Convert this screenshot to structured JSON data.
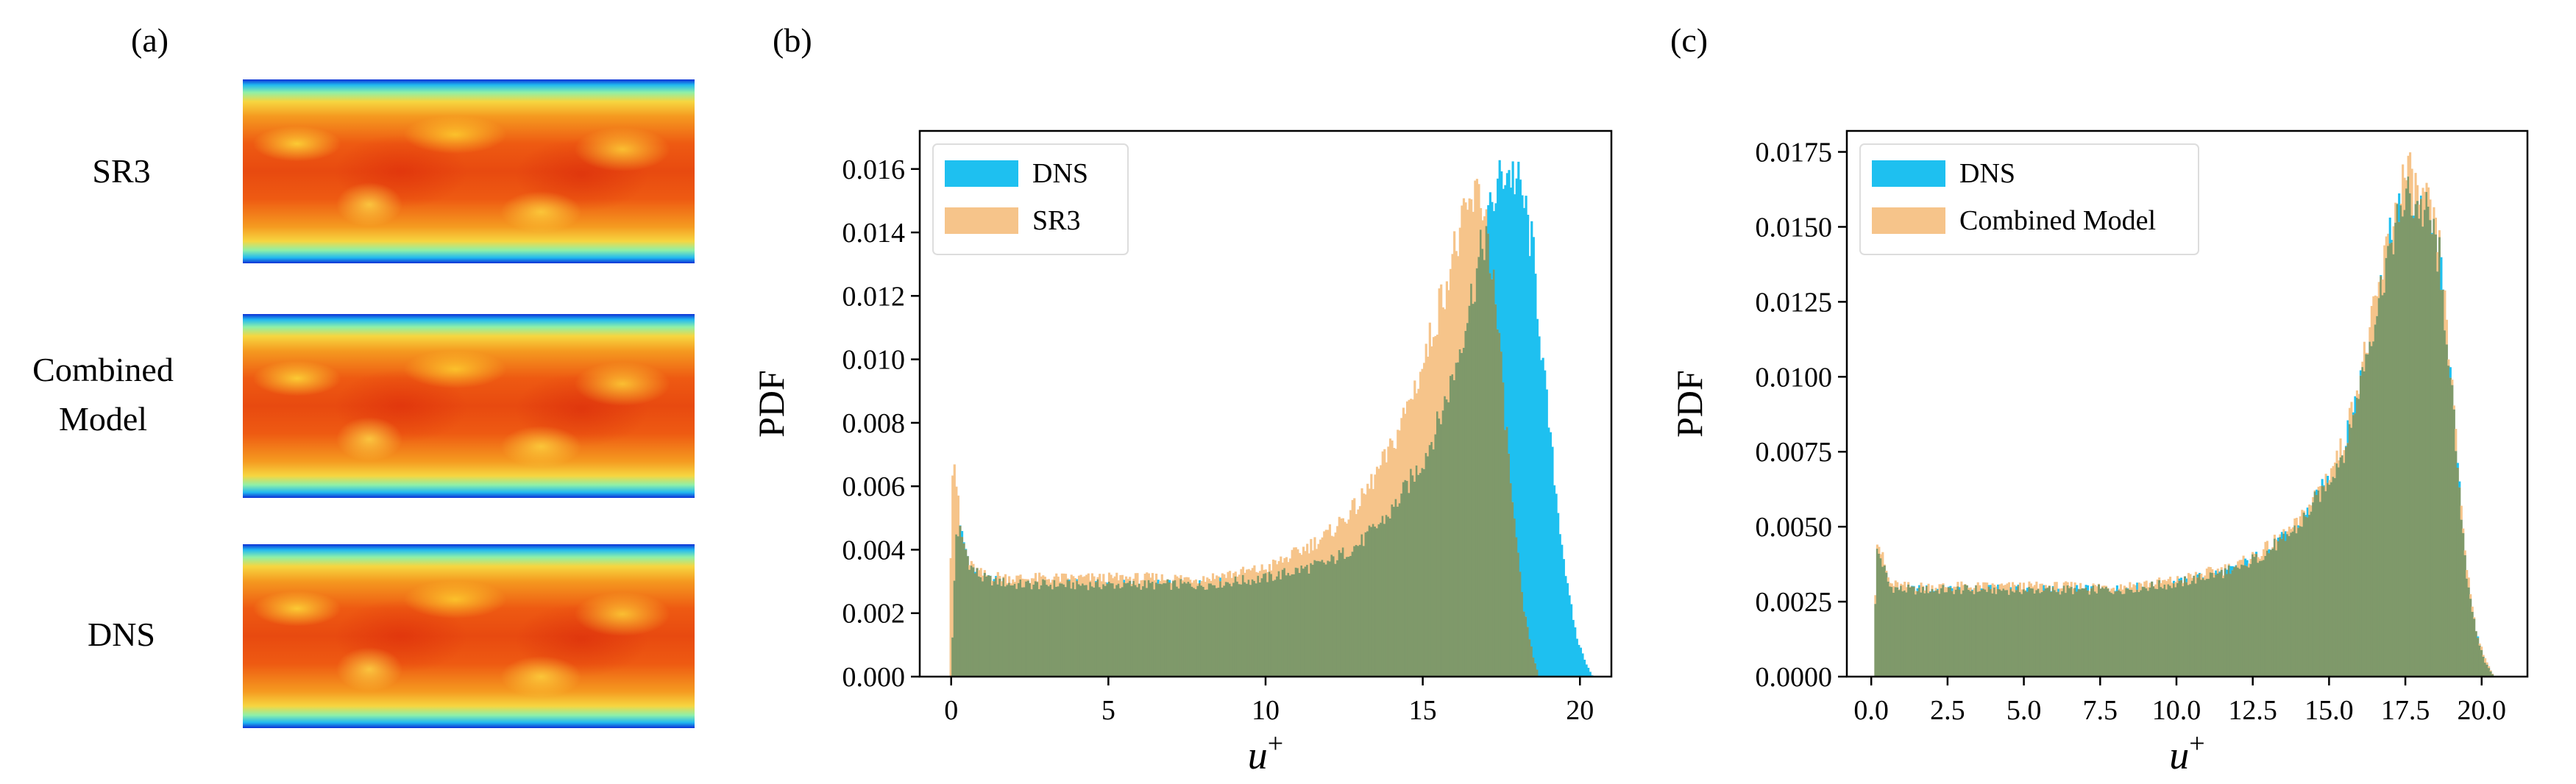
{
  "figure": {
    "panel_a": {
      "label": "(a)",
      "rows": [
        {
          "lines": [
            "SR3"
          ]
        },
        {
          "lines": [
            "Combined",
            "Model"
          ]
        },
        {
          "lines": [
            "DNS"
          ]
        }
      ]
    },
    "panel_b": {
      "label": "(b)"
    },
    "panel_c": {
      "label": "(c)"
    }
  },
  "colors": {
    "dns": "#1ec0f0",
    "model": "#f6c48a",
    "overlap": "#7f996a"
  },
  "chart_data": [
    {
      "type": "histogram",
      "panel": "b",
      "xlabel_base": "u",
      "xlabel_sup": "+",
      "ylabel": "PDF",
      "xlim": [
        -1,
        21
      ],
      "ylim": [
        0,
        0.0172
      ],
      "xticks": [
        0,
        5,
        10,
        15,
        20
      ],
      "xtick_labels": [
        "0",
        "5",
        "10",
        "15",
        "20"
      ],
      "yticks": [
        0,
        0.002,
        0.004,
        0.006,
        0.008,
        0.01,
        0.012,
        0.014,
        0.016
      ],
      "ytick_labels": [
        "0.000",
        "0.002",
        "0.004",
        "0.006",
        "0.008",
        "0.010",
        "0.012",
        "0.014",
        "0.016"
      ],
      "legend": "top-left",
      "series": [
        {
          "name": "DNS",
          "color": "#1ec0f0",
          "points": [
            [
              0.0,
              0.0
            ],
            [
              0.15,
              0.0045
            ],
            [
              0.3,
              0.0046
            ],
            [
              0.6,
              0.0035
            ],
            [
              1,
              0.0031
            ],
            [
              2,
              0.0029
            ],
            [
              4,
              0.0029
            ],
            [
              6,
              0.0029
            ],
            [
              8,
              0.0029
            ],
            [
              10,
              0.0031
            ],
            [
              12,
              0.0036
            ],
            [
              13,
              0.0042
            ],
            [
              14,
              0.0052
            ],
            [
              15,
              0.0068
            ],
            [
              15.5,
              0.008
            ],
            [
              16,
              0.0096
            ],
            [
              16.5,
              0.0118
            ],
            [
              17,
              0.014
            ],
            [
              17.3,
              0.0152
            ],
            [
              17.6,
              0.016
            ],
            [
              17.9,
              0.0158
            ],
            [
              18.2,
              0.015
            ],
            [
              18.5,
              0.0134
            ],
            [
              18.8,
              0.01
            ],
            [
              19,
              0.008
            ],
            [
              19.3,
              0.0052
            ],
            [
              19.6,
              0.0028
            ],
            [
              19.9,
              0.0012
            ],
            [
              20.2,
              0.0004
            ],
            [
              20.4,
              0.0
            ]
          ]
        },
        {
          "name": "SR3",
          "color": "#f6c48a",
          "points": [
            [
              -0.05,
              0.0
            ],
            [
              0.0,
              0.0066
            ],
            [
              0.1,
              0.0068
            ],
            [
              0.3,
              0.0045
            ],
            [
              0.6,
              0.0035
            ],
            [
              1,
              0.0032
            ],
            [
              2,
              0.0031
            ],
            [
              4,
              0.0031
            ],
            [
              6,
              0.0031
            ],
            [
              8,
              0.0031
            ],
            [
              10,
              0.0034
            ],
            [
              11,
              0.0039
            ],
            [
              12,
              0.0045
            ],
            [
              13,
              0.0055
            ],
            [
              14,
              0.0072
            ],
            [
              15,
              0.0098
            ],
            [
              15.5,
              0.0116
            ],
            [
              16,
              0.0134
            ],
            [
              16.5,
              0.0148
            ],
            [
              16.8,
              0.0152
            ],
            [
              17,
              0.0146
            ],
            [
              17.3,
              0.012
            ],
            [
              17.6,
              0.0085
            ],
            [
              17.9,
              0.005
            ],
            [
              18.2,
              0.0022
            ],
            [
              18.5,
              0.0007
            ],
            [
              18.7,
              0.0
            ]
          ]
        }
      ]
    },
    {
      "type": "histogram",
      "panel": "c",
      "xlabel_base": "u",
      "xlabel_sup": "+",
      "ylabel": "PDF",
      "xlim": [
        -0.8,
        21.5
      ],
      "ylim": [
        0,
        0.0182
      ],
      "xticks": [
        0,
        2.5,
        5,
        7.5,
        10,
        12.5,
        15,
        17.5,
        20
      ],
      "xtick_labels": [
        "0.0",
        "2.5",
        "5.0",
        "7.5",
        "10.0",
        "12.5",
        "15.0",
        "17.5",
        "20.0"
      ],
      "yticks": [
        0,
        0.0025,
        0.005,
        0.0075,
        0.01,
        0.0125,
        0.015,
        0.0175
      ],
      "ytick_labels": [
        "0.0000",
        "0.0025",
        "0.0050",
        "0.0075",
        "0.0100",
        "0.0125",
        "0.0150",
        "0.0175"
      ],
      "legend": "top-left",
      "series": [
        {
          "name": "DNS",
          "color": "#1ec0f0",
          "points": [
            [
              0.1,
              0.0
            ],
            [
              0.15,
              0.0042
            ],
            [
              0.3,
              0.004
            ],
            [
              0.6,
              0.003
            ],
            [
              1,
              0.0029
            ],
            [
              3,
              0.0029
            ],
            [
              5,
              0.0029
            ],
            [
              8,
              0.0029
            ],
            [
              10,
              0.0031
            ],
            [
              12,
              0.0036
            ],
            [
              13,
              0.0042
            ],
            [
              14,
              0.005
            ],
            [
              15,
              0.0066
            ],
            [
              15.5,
              0.0076
            ],
            [
              16,
              0.0098
            ],
            [
              16.5,
              0.012
            ],
            [
              17,
              0.0145
            ],
            [
              17.5,
              0.016
            ],
            [
              17.9,
              0.0158
            ],
            [
              18.3,
              0.0152
            ],
            [
              18.6,
              0.014
            ],
            [
              18.9,
              0.011
            ],
            [
              19.2,
              0.007
            ],
            [
              19.5,
              0.0035
            ],
            [
              19.8,
              0.0015
            ],
            [
              20.1,
              0.0005
            ],
            [
              20.4,
              0.0
            ]
          ]
        },
        {
          "name": "Combined Model",
          "color": "#f6c48a",
          "points": [
            [
              0.1,
              0.0
            ],
            [
              0.15,
              0.0048
            ],
            [
              0.3,
              0.0042
            ],
            [
              0.6,
              0.0031
            ],
            [
              1,
              0.003
            ],
            [
              3,
              0.003
            ],
            [
              5,
              0.003
            ],
            [
              8,
              0.003
            ],
            [
              10,
              0.0032
            ],
            [
              12,
              0.0037
            ],
            [
              13,
              0.0043
            ],
            [
              14,
              0.0051
            ],
            [
              15,
              0.0068
            ],
            [
              15.5,
              0.0078
            ],
            [
              16,
              0.01
            ],
            [
              16.5,
              0.0122
            ],
            [
              17,
              0.0148
            ],
            [
              17.5,
              0.0168
            ],
            [
              17.9,
              0.016
            ],
            [
              18.3,
              0.0154
            ],
            [
              18.6,
              0.0142
            ],
            [
              18.9,
              0.0112
            ],
            [
              19.2,
              0.0072
            ],
            [
              19.5,
              0.0037
            ],
            [
              19.8,
              0.0016
            ],
            [
              20.1,
              0.0006
            ],
            [
              20.4,
              0.0
            ]
          ]
        }
      ]
    }
  ]
}
